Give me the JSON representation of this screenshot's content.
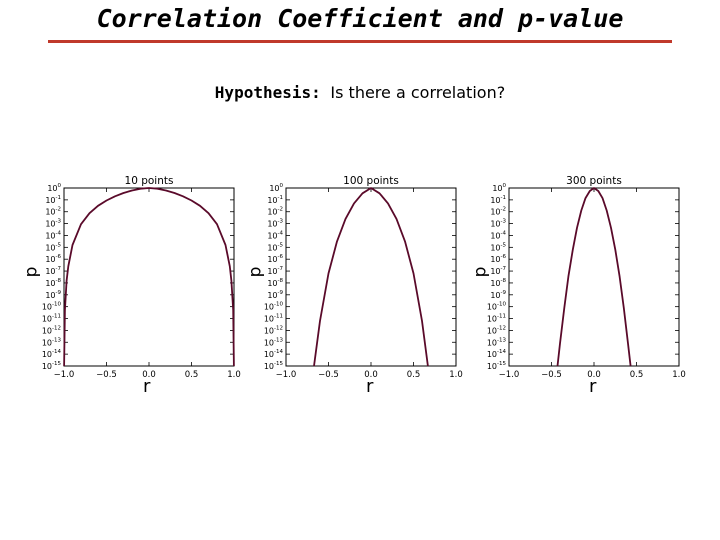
{
  "slide": {
    "title": "Correlation Coefficient and p-value",
    "hypothesis_label": "Hypothesis:",
    "hypothesis_text": "Is there a correlation?"
  },
  "colors": {
    "rule": "#c0392b",
    "curve": "#5a0a2a"
  },
  "chart_data": [
    {
      "type": "line",
      "title": "10 points",
      "xlabel": "r",
      "ylabel": "p",
      "xlim": [
        -1.0,
        1.0
      ],
      "ylim_exponent": [
        -15,
        0
      ],
      "yscale": "log",
      "x_ticks": [
        "−1.0",
        "−0.5",
        "0.0",
        "0.5",
        "1.0"
      ],
      "x_tick_values": [
        -1.0,
        -0.5,
        0.0,
        0.5,
        1.0
      ],
      "y_ticks": [
        "0",
        "-1",
        "-2",
        "-3",
        "-4",
        "-5",
        "-6",
        "-7",
        "-8",
        "-9",
        "-10",
        "-11",
        "-12",
        "-13",
        "-14",
        "-15"
      ],
      "y_tick_base": "10",
      "grid": false,
      "series": [
        {
          "x": [
            -0.999,
            -0.99,
            -0.97,
            -0.95,
            -0.9,
            -0.8,
            -0.7,
            -0.6,
            -0.5,
            -0.4,
            -0.3,
            -0.2,
            -0.1,
            0.0,
            0.1,
            0.2,
            0.3,
            0.4,
            0.5,
            0.6,
            0.7,
            0.8,
            0.9,
            0.95,
            0.97,
            0.99,
            0.999
          ],
          "log10_p": [
            -15,
            -10.3,
            -7.8,
            -6.6,
            -4.8,
            -3.05,
            -2.12,
            -1.5,
            -1.05,
            -0.7,
            -0.42,
            -0.21,
            -0.06,
            0,
            -0.06,
            -0.21,
            -0.42,
            -0.7,
            -1.05,
            -1.5,
            -2.12,
            -3.05,
            -4.8,
            -6.6,
            -7.8,
            -10.3,
            -15
          ]
        }
      ]
    },
    {
      "type": "line",
      "title": "100 points",
      "xlabel": "r",
      "ylabel": "p",
      "xlim": [
        -1.0,
        1.0
      ],
      "ylim_exponent": [
        -15,
        0
      ],
      "yscale": "log",
      "x_ticks": [
        "−1.0",
        "−0.5",
        "0.0",
        "0.5",
        "1.0"
      ],
      "x_tick_values": [
        -1.0,
        -0.5,
        0.0,
        0.5,
        1.0
      ],
      "y_ticks": [
        "0",
        "-1",
        "-2",
        "-3",
        "-4",
        "-5",
        "-6",
        "-7",
        "-8",
        "-9",
        "-10",
        "-11",
        "-12",
        "-13",
        "-14",
        "-15"
      ],
      "y_tick_base": "10",
      "grid": false,
      "series": [
        {
          "x": [
            -0.67,
            -0.6,
            -0.5,
            -0.4,
            -0.3,
            -0.2,
            -0.1,
            0.0,
            0.1,
            0.2,
            0.3,
            0.4,
            0.5,
            0.6,
            0.67
          ],
          "log10_p": [
            -15,
            -11.2,
            -7.2,
            -4.5,
            -2.6,
            -1.3,
            -0.45,
            0,
            -0.45,
            -1.3,
            -2.6,
            -4.5,
            -7.2,
            -11.2,
            -15
          ]
        }
      ]
    },
    {
      "type": "line",
      "title": "300 points",
      "xlabel": "r",
      "ylabel": "p",
      "xlim": [
        -1.0,
        1.0
      ],
      "ylim_exponent": [
        -15,
        0
      ],
      "yscale": "log",
      "x_ticks": [
        "−1.0",
        "−0.5",
        "0.0",
        "0.5",
        "1.0"
      ],
      "x_tick_values": [
        -1.0,
        -0.5,
        0.0,
        0.5,
        1.0
      ],
      "y_ticks": [
        "0",
        "-1",
        "-2",
        "-3",
        "-4",
        "-5",
        "-6",
        "-7",
        "-8",
        "-9",
        "-10",
        "-11",
        "-12",
        "-13",
        "-14",
        "-15"
      ],
      "y_tick_base": "10",
      "grid": false,
      "series": [
        {
          "x": [
            -0.43,
            -0.4,
            -0.35,
            -0.3,
            -0.25,
            -0.2,
            -0.15,
            -0.1,
            -0.05,
            0.0,
            0.05,
            0.1,
            0.15,
            0.2,
            0.25,
            0.3,
            0.35,
            0.4,
            0.43
          ],
          "log10_p": [
            -15,
            -13.1,
            -10.1,
            -7.4,
            -5.2,
            -3.35,
            -1.9,
            -0.85,
            -0.25,
            0,
            -0.25,
            -0.85,
            -1.9,
            -3.35,
            -5.2,
            -7.4,
            -10.1,
            -13.1,
            -15
          ]
        }
      ]
    }
  ]
}
